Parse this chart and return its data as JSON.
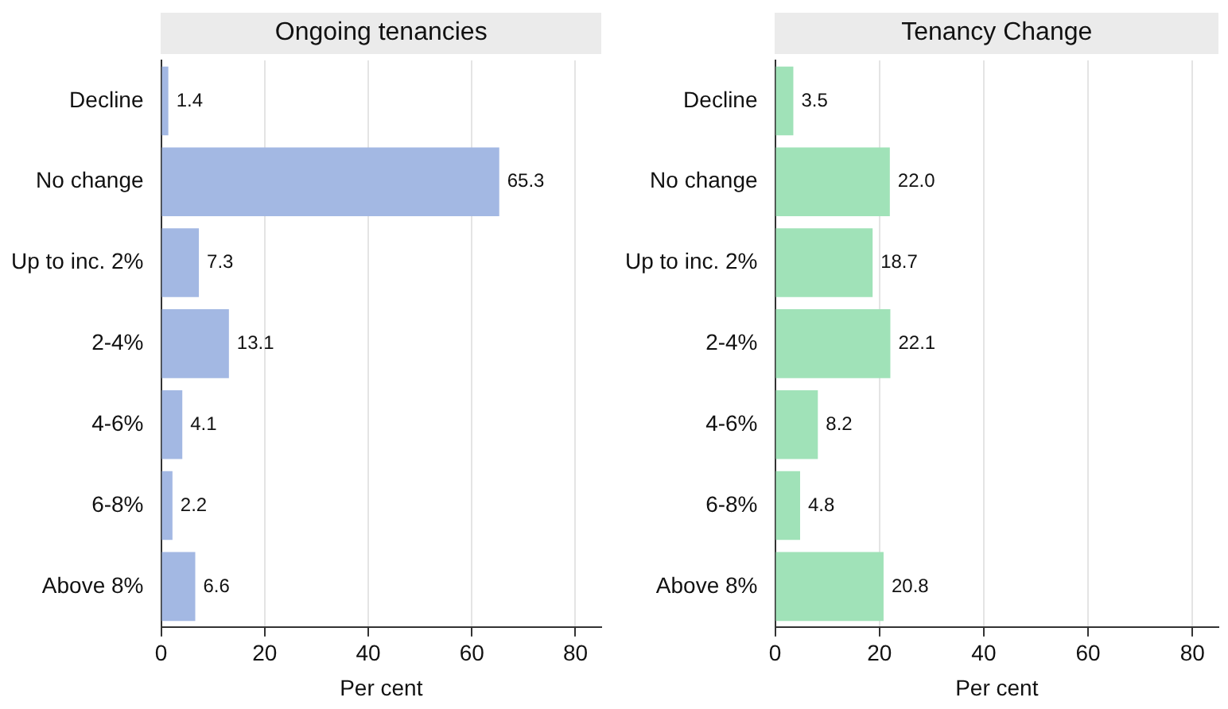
{
  "chart_data": [
    {
      "type": "bar",
      "orientation": "horizontal",
      "title": "Ongoing tenancies",
      "xlabel": "Per cent",
      "categories": [
        "Decline",
        "No change",
        "Up to inc. 2%",
        "2-4%",
        "4-6%",
        "6-8%",
        "Above 8%"
      ],
      "values": [
        1.4,
        65.3,
        7.3,
        13.1,
        4.1,
        2.2,
        6.6
      ],
      "value_labels": [
        "1.4",
        "65.3",
        "7.3",
        "13.1",
        "4.1",
        "2.2",
        "6.6"
      ],
      "color": "#a3b8e3",
      "xlim": [
        0,
        85
      ],
      "xticks": [
        0,
        20,
        40,
        60,
        80
      ],
      "grid": "x"
    },
    {
      "type": "bar",
      "orientation": "horizontal",
      "title": "Tenancy Change",
      "xlabel": "Per cent",
      "categories": [
        "Decline",
        "No change",
        "Up to inc. 2%",
        "2-4%",
        "4-6%",
        "6-8%",
        "Above 8%"
      ],
      "values": [
        3.5,
        22.0,
        18.7,
        22.1,
        8.2,
        4.8,
        20.8
      ],
      "value_labels": [
        "3.5",
        "22.0",
        "18.7",
        "22.1",
        "8.2",
        "4.8",
        "20.8"
      ],
      "color": "#a0e2b8",
      "xlim": [
        0,
        85
      ],
      "xticks": [
        0,
        20,
        40,
        60,
        80
      ],
      "grid": "x"
    }
  ]
}
